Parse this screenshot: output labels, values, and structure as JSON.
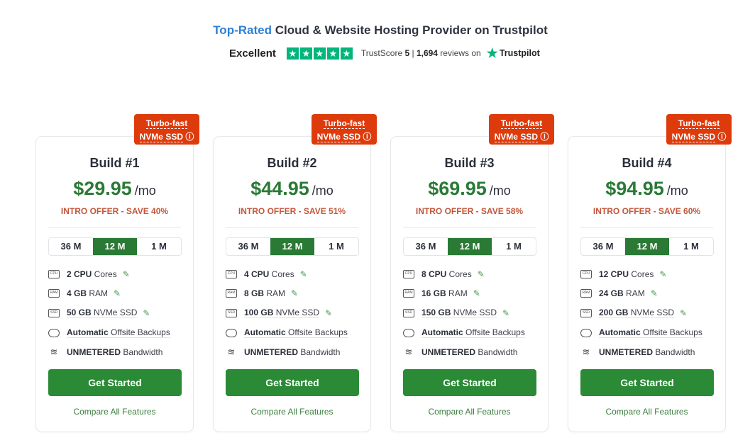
{
  "header": {
    "accent": "Top-Rated",
    "title_rest": " Cloud & Website Hosting Provider on Trustpilot",
    "rating_word": "Excellent",
    "stars": 5,
    "trustscore_label": "TrustScore ",
    "trustscore_value": "5",
    "reviews_sep": " | ",
    "reviews_count": "1,694",
    "reviews_suffix": " reviews on",
    "brand": "Trustpilot"
  },
  "colors": {
    "accent_green": "#2a7a36",
    "badge_red": "#de3b0c",
    "trustpilot_green": "#00b67a",
    "link_blue": "#2f7fd6"
  },
  "plans": [
    {
      "badge_line1": "Turbo-fast",
      "badge_line2": "NVMe SSD",
      "name": "Build #1",
      "price": "$29.95",
      "per": "/mo",
      "intro": "INTRO OFFER - SAVE 40%",
      "terms": [
        "36 M",
        "12 M",
        "1 M"
      ],
      "selected_term": "12 M",
      "cpu_b": "2 CPU",
      "cpu_t": " Cores",
      "ram_b": "4 GB",
      "ram_t": " RAM",
      "ssd_b": "50 GB",
      "ssd_t": " NVMe SSD",
      "backup_b": "Automatic",
      "backup_t": " Offsite Backups",
      "bw_b": "UNMETERED",
      "bw_t": " Bandwidth",
      "cta": "Get Started",
      "compare": "Compare All Features"
    },
    {
      "badge_line1": "Turbo-fast",
      "badge_line2": "NVMe SSD",
      "name": "Build #2",
      "price": "$44.95",
      "per": "/mo",
      "intro": "INTRO OFFER - SAVE 51%",
      "terms": [
        "36 M",
        "12 M",
        "1 M"
      ],
      "selected_term": "12 M",
      "cpu_b": "4 CPU",
      "cpu_t": " Cores",
      "ram_b": "8 GB",
      "ram_t": " RAM",
      "ssd_b": "100 GB",
      "ssd_t": " NVMe SSD",
      "backup_b": "Automatic",
      "backup_t": " Offsite Backups",
      "bw_b": "UNMETERED",
      "bw_t": " Bandwidth",
      "cta": "Get Started",
      "compare": "Compare All Features"
    },
    {
      "badge_line1": "Turbo-fast",
      "badge_line2": "NVMe SSD",
      "name": "Build #3",
      "price": "$69.95",
      "per": "/mo",
      "intro": "INTRO OFFER - SAVE 58%",
      "terms": [
        "36 M",
        "12 M",
        "1 M"
      ],
      "selected_term": "12 M",
      "cpu_b": "8 CPU",
      "cpu_t": " Cores",
      "ram_b": "16 GB",
      "ram_t": " RAM",
      "ssd_b": "150 GB",
      "ssd_t": " NVMe SSD",
      "backup_b": "Automatic",
      "backup_t": " Offsite Backups",
      "bw_b": "UNMETERED",
      "bw_t": " Bandwidth",
      "cta": "Get Started",
      "compare": "Compare All Features"
    },
    {
      "badge_line1": "Turbo-fast",
      "badge_line2": "NVMe SSD",
      "name": "Build #4",
      "price": "$94.95",
      "per": "/mo",
      "intro": "INTRO OFFER - SAVE 60%",
      "terms": [
        "36 M",
        "12 M",
        "1 M"
      ],
      "selected_term": "12 M",
      "cpu_b": "12 CPU",
      "cpu_t": " Cores",
      "ram_b": "24 GB",
      "ram_t": " RAM",
      "ssd_b": "200 GB",
      "ssd_t": " NVMe SSD",
      "backup_b": "Automatic",
      "backup_t": " Offsite Backups",
      "bw_b": "UNMETERED",
      "bw_t": " Bandwidth",
      "cta": "Get Started",
      "compare": "Compare All Features"
    }
  ]
}
